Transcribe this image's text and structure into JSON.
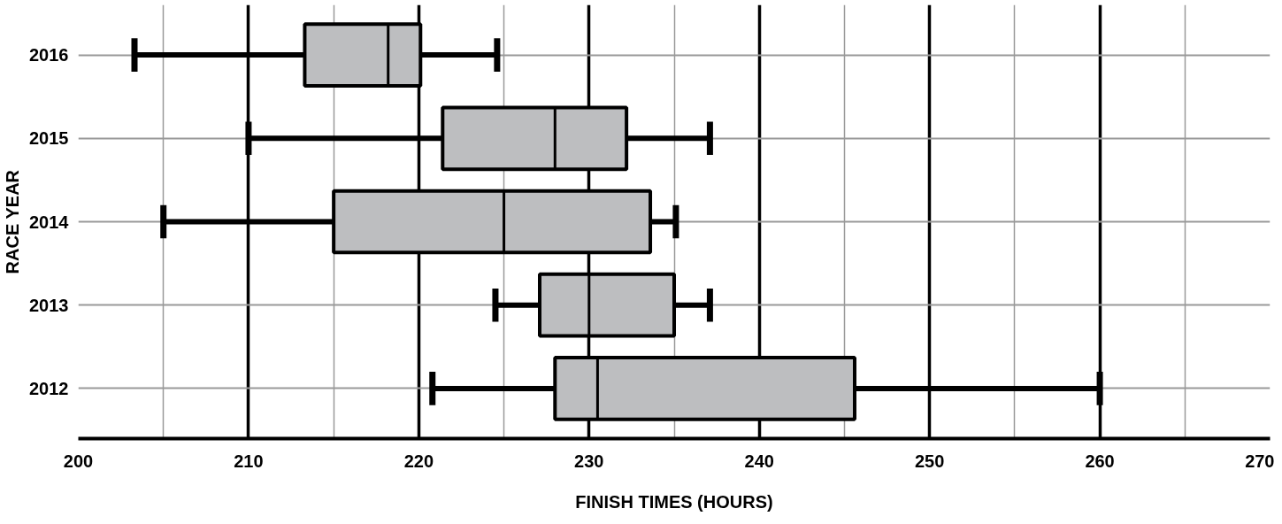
{
  "chart_data": {
    "type": "box",
    "orientation": "horizontal",
    "xlabel": "FINISH TIMES (HOURS)",
    "ylabel": "RACE YEAR",
    "categories": [
      "2016",
      "2015",
      "2014",
      "2013",
      "2012"
    ],
    "color": "#bdbec0",
    "boxes": [
      {
        "low": 203.3,
        "q1": 213.3,
        "median": 218.2,
        "q3": 220.1,
        "high": 224.6
      },
      {
        "low": 210.0,
        "q1": 221.4,
        "median": 228.0,
        "q3": 232.2,
        "high": 237.1
      },
      {
        "low": 205.0,
        "q1": 215.0,
        "median": 225.0,
        "q3": 233.6,
        "high": 235.1
      },
      {
        "low": 224.5,
        "q1": 227.1,
        "median": 230.0,
        "q3": 235.0,
        "high": 237.1
      },
      {
        "low": 220.8,
        "q1": 228.0,
        "median": 230.5,
        "q3": 245.6,
        "high": 260.0
      }
    ],
    "xlim": [
      200,
      270
    ],
    "xticks": [
      200,
      {
        "value": 205,
        "label": null
      },
      210,
      {
        "value": 215,
        "label": null
      },
      220,
      {
        "value": 225,
        "label": null
      },
      230,
      {
        "value": 235,
        "label": null
      },
      240,
      {
        "value": 245,
        "label": null
      },
      250,
      {
        "value": 255,
        "label": null
      },
      260,
      {
        "value": 265,
        "label": null
      },
      270
    ],
    "grid": true
  }
}
